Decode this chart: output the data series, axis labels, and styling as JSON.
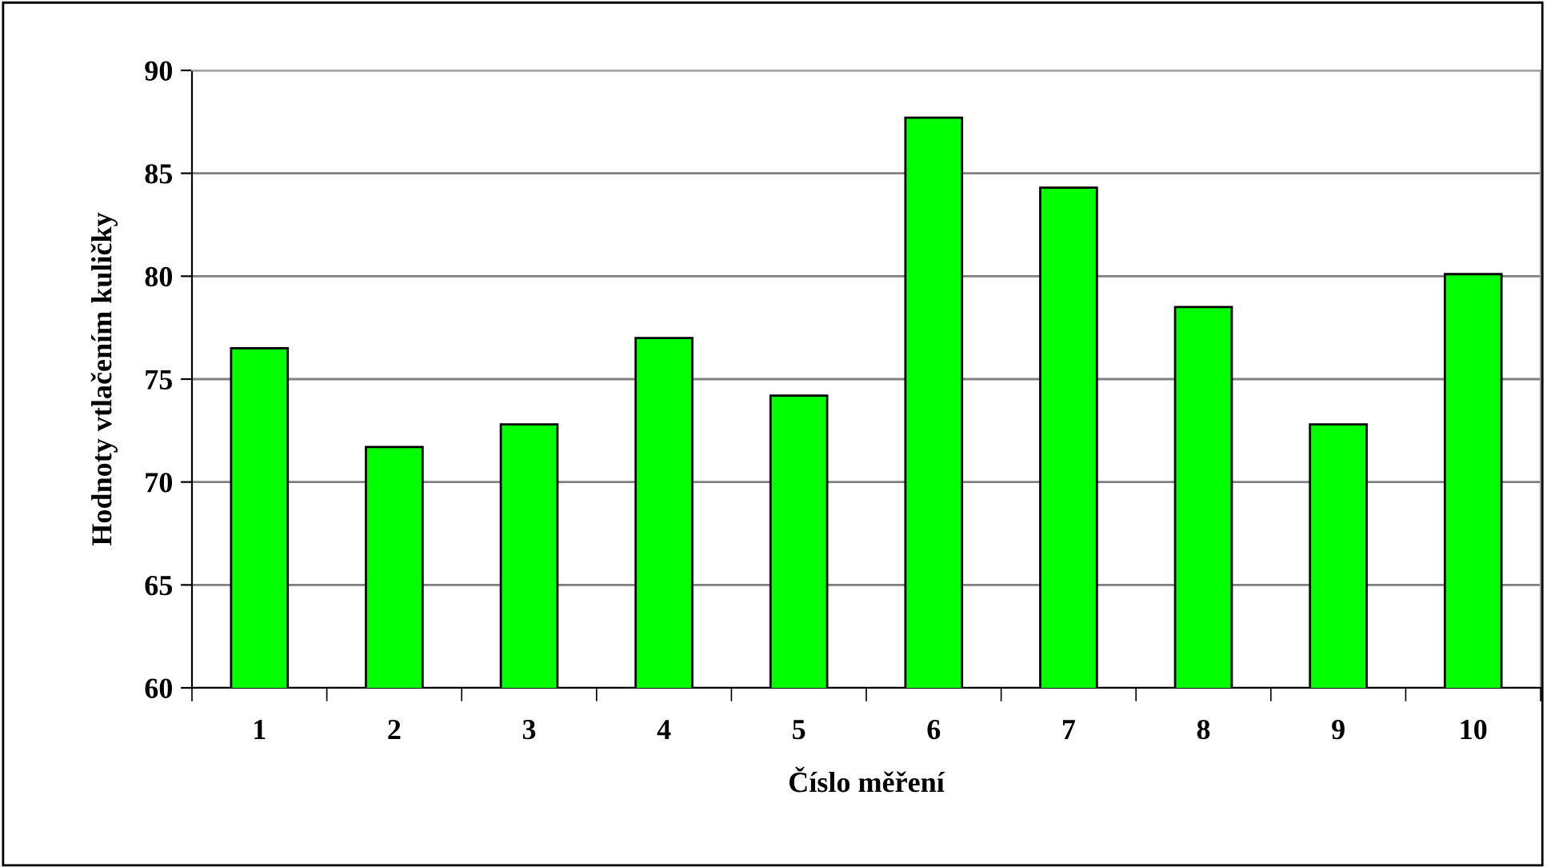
{
  "chart_data": {
    "type": "bar",
    "xlabel": "Číslo měření",
    "ylabel": "Hodnoty vtlačením kuličky",
    "categories": [
      "1",
      "2",
      "3",
      "4",
      "5",
      "6",
      "7",
      "8",
      "9",
      "10"
    ],
    "values": [
      76.5,
      71.7,
      72.8,
      77.0,
      74.2,
      87.7,
      84.3,
      78.5,
      72.8,
      80.1
    ],
    "color": "#00ff00",
    "ylim": [
      60,
      90
    ],
    "yticks": [
      60,
      65,
      70,
      75,
      80,
      85,
      90
    ],
    "grid": "y"
  }
}
